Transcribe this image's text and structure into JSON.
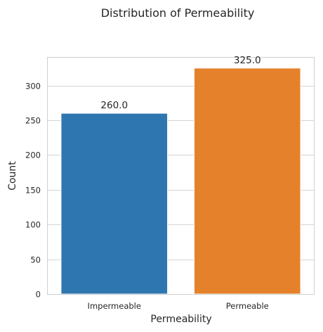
{
  "chart_data": {
    "type": "bar",
    "title": "Distribution of Permeability",
    "xlabel": "Permeability",
    "ylabel": "Count",
    "categories": [
      "Impermeable",
      "Permeable"
    ],
    "values": [
      260,
      325
    ],
    "data_labels": [
      "260.0",
      "325.0"
    ],
    "bar_colors": [
      "#2e76b0",
      "#e5812b"
    ],
    "ylim": [
      0,
      340
    ],
    "yticks": [
      0,
      50,
      100,
      150,
      200,
      250,
      300
    ],
    "grid": true,
    "grid_axis": "y",
    "legend": "none"
  }
}
